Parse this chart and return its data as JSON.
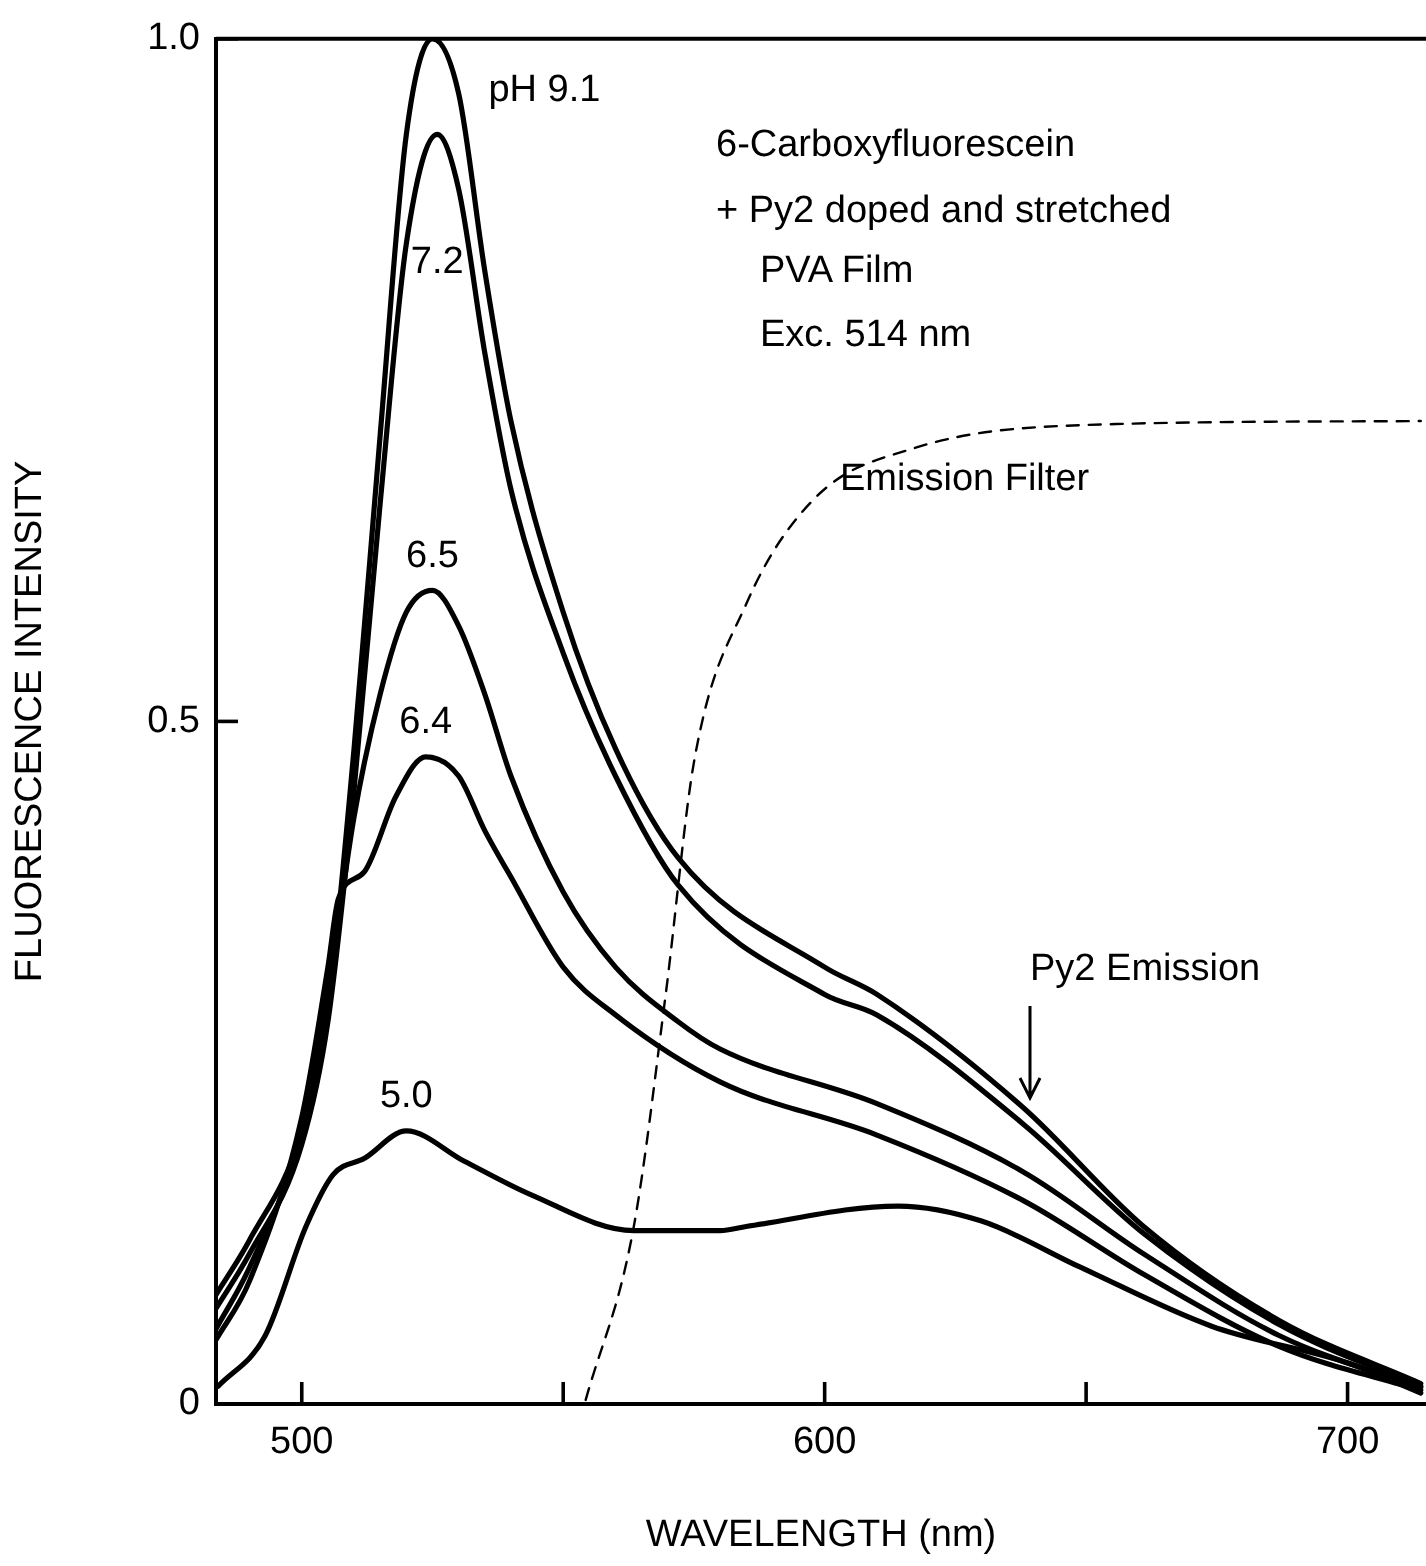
{
  "chart_data": {
    "type": "line",
    "xlabel": "WAVELENGTH (nm)",
    "ylabel": "FLUORESCENCE INTENSITY",
    "xlim": [
      483.6,
      715
    ],
    "xticks": [
      500,
      {
        "value": 550,
        "label": null
      },
      600,
      {
        "value": 650,
        "label": null
      },
      700
    ],
    "ylim": [
      0,
      1
    ],
    "yticks": [
      0,
      0.5,
      {
        "value": 1,
        "label": "1.0"
      }
    ],
    "grid": false,
    "legend": false,
    "marker": "none",
    "annotations": [
      "6-Carboxyfluorescein",
      "+ Py2 doped and stretched",
      "PVA Film",
      "Exc. 514 nm",
      "Emission Filter",
      "Py2 Emission"
    ],
    "series": [
      {
        "name": "pH 9.1",
        "color": "#000000",
        "x": [
          483.6,
          490,
          500,
          505,
          510,
          515,
          520,
          525,
          530,
          535,
          540,
          550,
          560,
          572,
          600,
          610,
          638,
          661,
          687,
          714
        ],
        "values": [
          0.08,
          0.12,
          0.2,
          0.29,
          0.48,
          0.71,
          0.93,
          1.0,
          0.96,
          0.83,
          0.72,
          0.58,
          0.48,
          0.4,
          0.32,
          0.3,
          0.217,
          0.13,
          0.061,
          0.015
        ]
      },
      {
        "name": "7.2",
        "color": "#000000",
        "x": [
          483.6,
          490,
          500,
          505,
          510,
          515,
          520,
          525.9,
          530,
          535,
          540,
          550,
          560,
          572,
          600,
          610,
          638,
          661,
          687,
          714
        ],
        "values": [
          0.07,
          0.11,
          0.19,
          0.28,
          0.45,
          0.66,
          0.85,
          0.93,
          0.89,
          0.77,
          0.67,
          0.55,
          0.46,
          0.38,
          0.3,
          0.285,
          0.205,
          0.125,
          0.058,
          0.013
        ]
      },
      {
        "name": "6.5",
        "color": "#000000",
        "x": [
          483.6,
          490,
          500,
          505,
          510,
          515,
          520,
          525,
          530,
          535,
          540,
          550,
          560,
          572,
          580,
          610,
          638,
          661,
          687,
          714
        ],
        "values": [
          0.055,
          0.1,
          0.2,
          0.3,
          0.43,
          0.52,
          0.58,
          0.596,
          0.57,
          0.52,
          0.46,
          0.375,
          0.32,
          0.28,
          0.26,
          0.22,
          0.17,
          0.11,
          0.05,
          0.012
        ]
      },
      {
        "name": "6.4",
        "color": "#000000",
        "x": [
          483.6,
          490,
          500,
          505,
          507,
          512,
          518,
          523.7,
          530,
          535,
          540,
          550,
          560,
          580,
          610,
          638,
          661,
          687,
          714
        ],
        "values": [
          0.047,
          0.09,
          0.21,
          0.32,
          0.37,
          0.39,
          0.445,
          0.474,
          0.46,
          0.42,
          0.386,
          0.32,
          0.285,
          0.236,
          0.197,
          0.149,
          0.095,
          0.042,
          0.01
        ]
      },
      {
        "name": "5.0",
        "color": "#000000",
        "x": [
          484,
          493,
          500.8,
          506,
          512,
          520,
          531,
          544,
          563.5,
          580,
          585,
          614,
          630,
          649,
          674,
          700,
          714
        ],
        "values": [
          0.013,
          0.05,
          0.13,
          0.168,
          0.18,
          0.2,
          0.178,
          0.153,
          0.127,
          0.127,
          0.13,
          0.145,
          0.134,
          0.1,
          0.057,
          0.03,
          0.008
        ]
      },
      {
        "color": "#000000",
        "line_style": "dashed",
        "x": [
          554.3,
          563.5,
          569.6,
          575,
          585,
          598,
          617,
          649,
          714
        ],
        "values": [
          0.003,
          0.13,
          0.3,
          0.47,
          0.586,
          0.663,
          0.7,
          0.717,
          0.72
        ]
      }
    ]
  }
}
